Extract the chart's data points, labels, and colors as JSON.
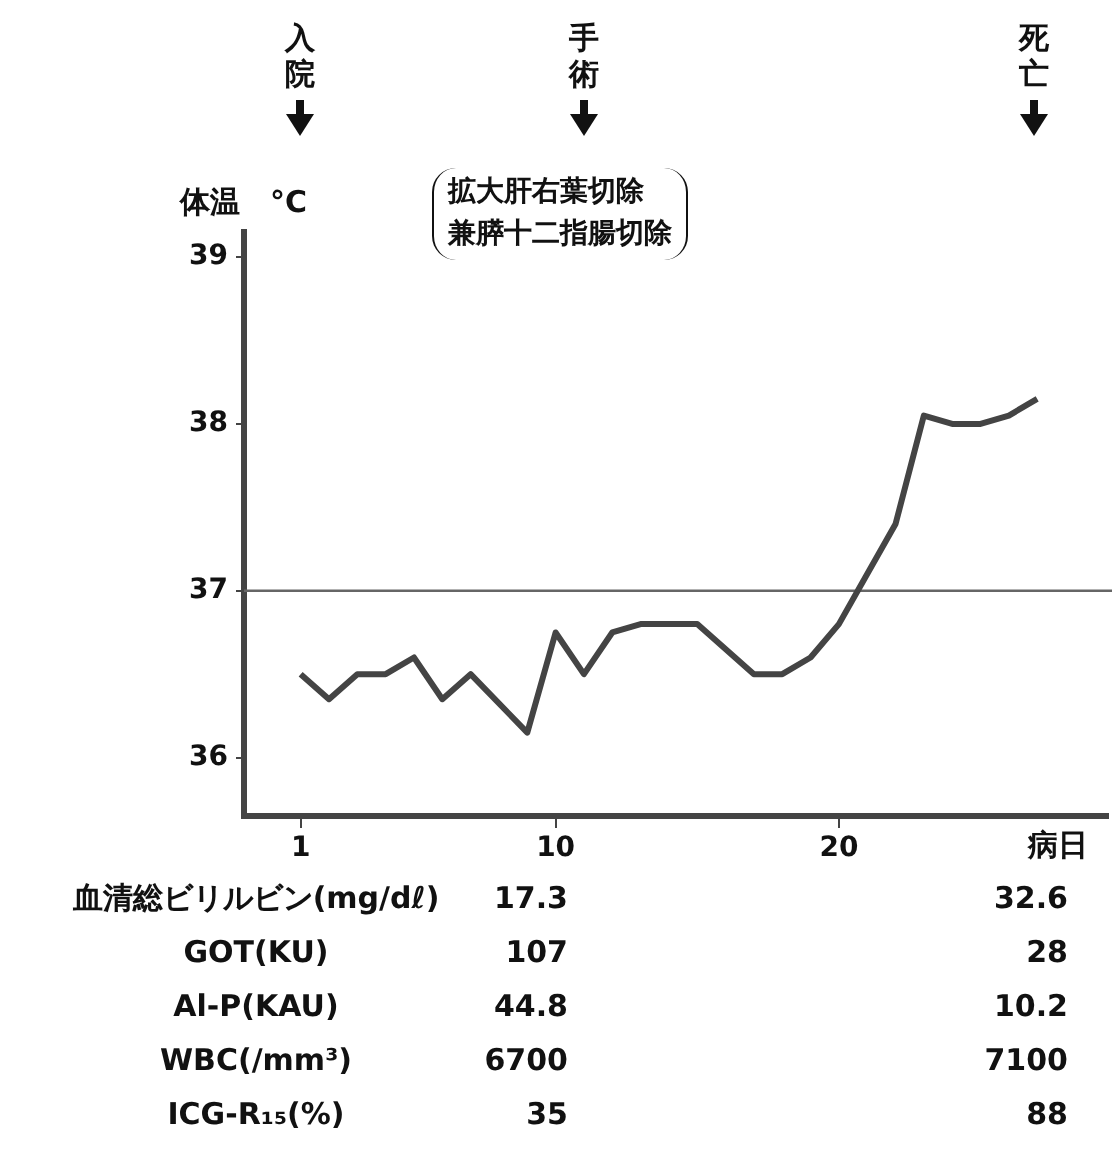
{
  "chart_data": [
    {
      "type": "line",
      "ylabel": "体温　°C",
      "xlabel": "病日",
      "x": [
        1,
        2,
        3,
        4,
        5,
        6,
        7,
        9,
        10,
        11,
        12,
        13,
        15,
        17,
        18,
        19,
        20,
        21,
        22,
        23,
        24,
        25,
        26,
        27
      ],
      "series": [
        {
          "color": "#444444",
          "values": [
            36.5,
            36.35,
            36.5,
            36.5,
            36.6,
            36.35,
            36.5,
            36.15,
            36.75,
            36.5,
            36.75,
            36.8,
            36.8,
            36.5,
            36.5,
            36.6,
            36.8,
            37.1,
            37.4,
            38.05,
            38.0,
            38.0,
            38.05,
            38.15
          ]
        }
      ],
      "xlim": [
        -1,
        29.5
      ],
      "xticks": [
        1,
        10,
        20
      ],
      "ylim": [
        35.65,
        39.15
      ],
      "yticks": [
        36,
        37,
        38,
        39
      ],
      "ref_lines": [
        {
          "axis": "y",
          "value": 37,
          "color": "#666666"
        }
      ],
      "annotations": [
        "入院",
        "手術",
        "死亡",
        "拡大肝右葉切除",
        "兼膵十二指腸切除"
      ],
      "grid": false,
      "legend": false,
      "marker": "none",
      "line_style": "solid"
    },
    {
      "type": "other",
      "categories": [
        "血清総ビリルビン(mg/dℓ)",
        "GOT(KU)",
        "Al-P(KAU)",
        "WBC(/mm³)",
        "ICG-R₁₅(%)"
      ],
      "series": [
        {
          "values": [
            17.3,
            107,
            44.8,
            6700,
            35
          ]
        },
        {
          "values": [
            32.6,
            28,
            10.2,
            7100,
            88
          ]
        }
      ],
      "data_labels": true
    }
  ]
}
